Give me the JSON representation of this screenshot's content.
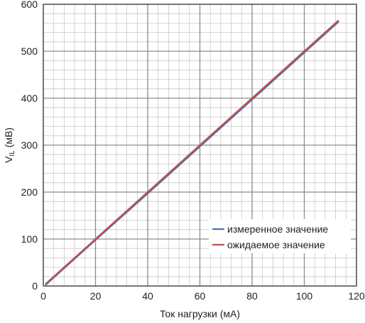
{
  "chart_data": {
    "type": "line",
    "xlabel": "Ток нагрузки (мА)",
    "ylabel": "V",
    "ylabel_subscript": "IL",
    "ylabel_unit": " (мВ)",
    "xlim": [
      0,
      120
    ],
    "ylim": [
      0,
      600
    ],
    "x_major_ticks": [
      0,
      20,
      40,
      60,
      80,
      100,
      120
    ],
    "x_tick_labels": [
      "0",
      "20",
      "40",
      "60",
      "80",
      "100",
      "120"
    ],
    "y_major_ticks": [
      0,
      100,
      200,
      300,
      400,
      500,
      600
    ],
    "y_tick_labels": [
      "0",
      "100",
      "200",
      "300",
      "400",
      "500",
      "600"
    ],
    "x_minor_step": 4,
    "y_minor_step": 20,
    "grid": true,
    "legend_position": "bottom-right",
    "series": [
      {
        "name": "измеренное значение",
        "color": "#4a72b0",
        "x": [
          1,
          20,
          40,
          60,
          80,
          100,
          113
        ],
        "y": [
          3,
          98,
          197,
          297,
          397,
          497,
          562
        ]
      },
      {
        "name": "ожидаемое значение",
        "color": "#c0504d",
        "x": [
          1,
          20,
          40,
          60,
          80,
          100,
          113
        ],
        "y": [
          5,
          100,
          200,
          300,
          400,
          500,
          565
        ]
      }
    ],
    "colors": {
      "minor_grid": "#c8c8c8",
      "major_grid": "#8c8c8c",
      "axis": "#333333"
    }
  }
}
